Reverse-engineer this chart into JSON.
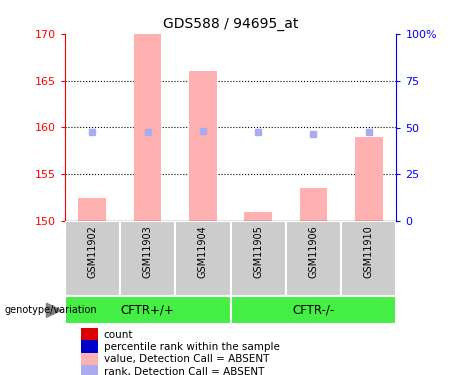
{
  "title": "GDS588 / 94695_at",
  "samples": [
    "GSM11902",
    "GSM11903",
    "GSM11904",
    "GSM11905",
    "GSM11906",
    "GSM11910"
  ],
  "bar_values": [
    152.5,
    170.0,
    166.0,
    151.0,
    153.5,
    159.0
  ],
  "rank_values": [
    47.5,
    47.5,
    48.0,
    47.5,
    46.5,
    47.5
  ],
  "ylim_left": [
    150,
    170
  ],
  "ylim_right": [
    0,
    100
  ],
  "yticks_left": [
    150,
    155,
    160,
    165,
    170
  ],
  "ytick_labels_right": [
    "0",
    "25",
    "50",
    "75",
    "100%"
  ],
  "yticks_right": [
    0,
    25,
    50,
    75,
    100
  ],
  "group1_label": "CFTR+/+",
  "group2_label": "CFTR-/-",
  "group_color": "#44ee44",
  "bar_color_absent": "#ffb0b0",
  "rank_color_absent": "#aaaaee",
  "legend_items": [
    {
      "label": "count",
      "color": "#dd0000"
    },
    {
      "label": "percentile rank within the sample",
      "color": "#0000cc"
    },
    {
      "label": "value, Detection Call = ABSENT",
      "color": "#ffb0b0"
    },
    {
      "label": "rank, Detection Call = ABSENT",
      "color": "#aaaaee"
    }
  ],
  "sample_box_color": "#cccccc",
  "title_fontsize": 10
}
